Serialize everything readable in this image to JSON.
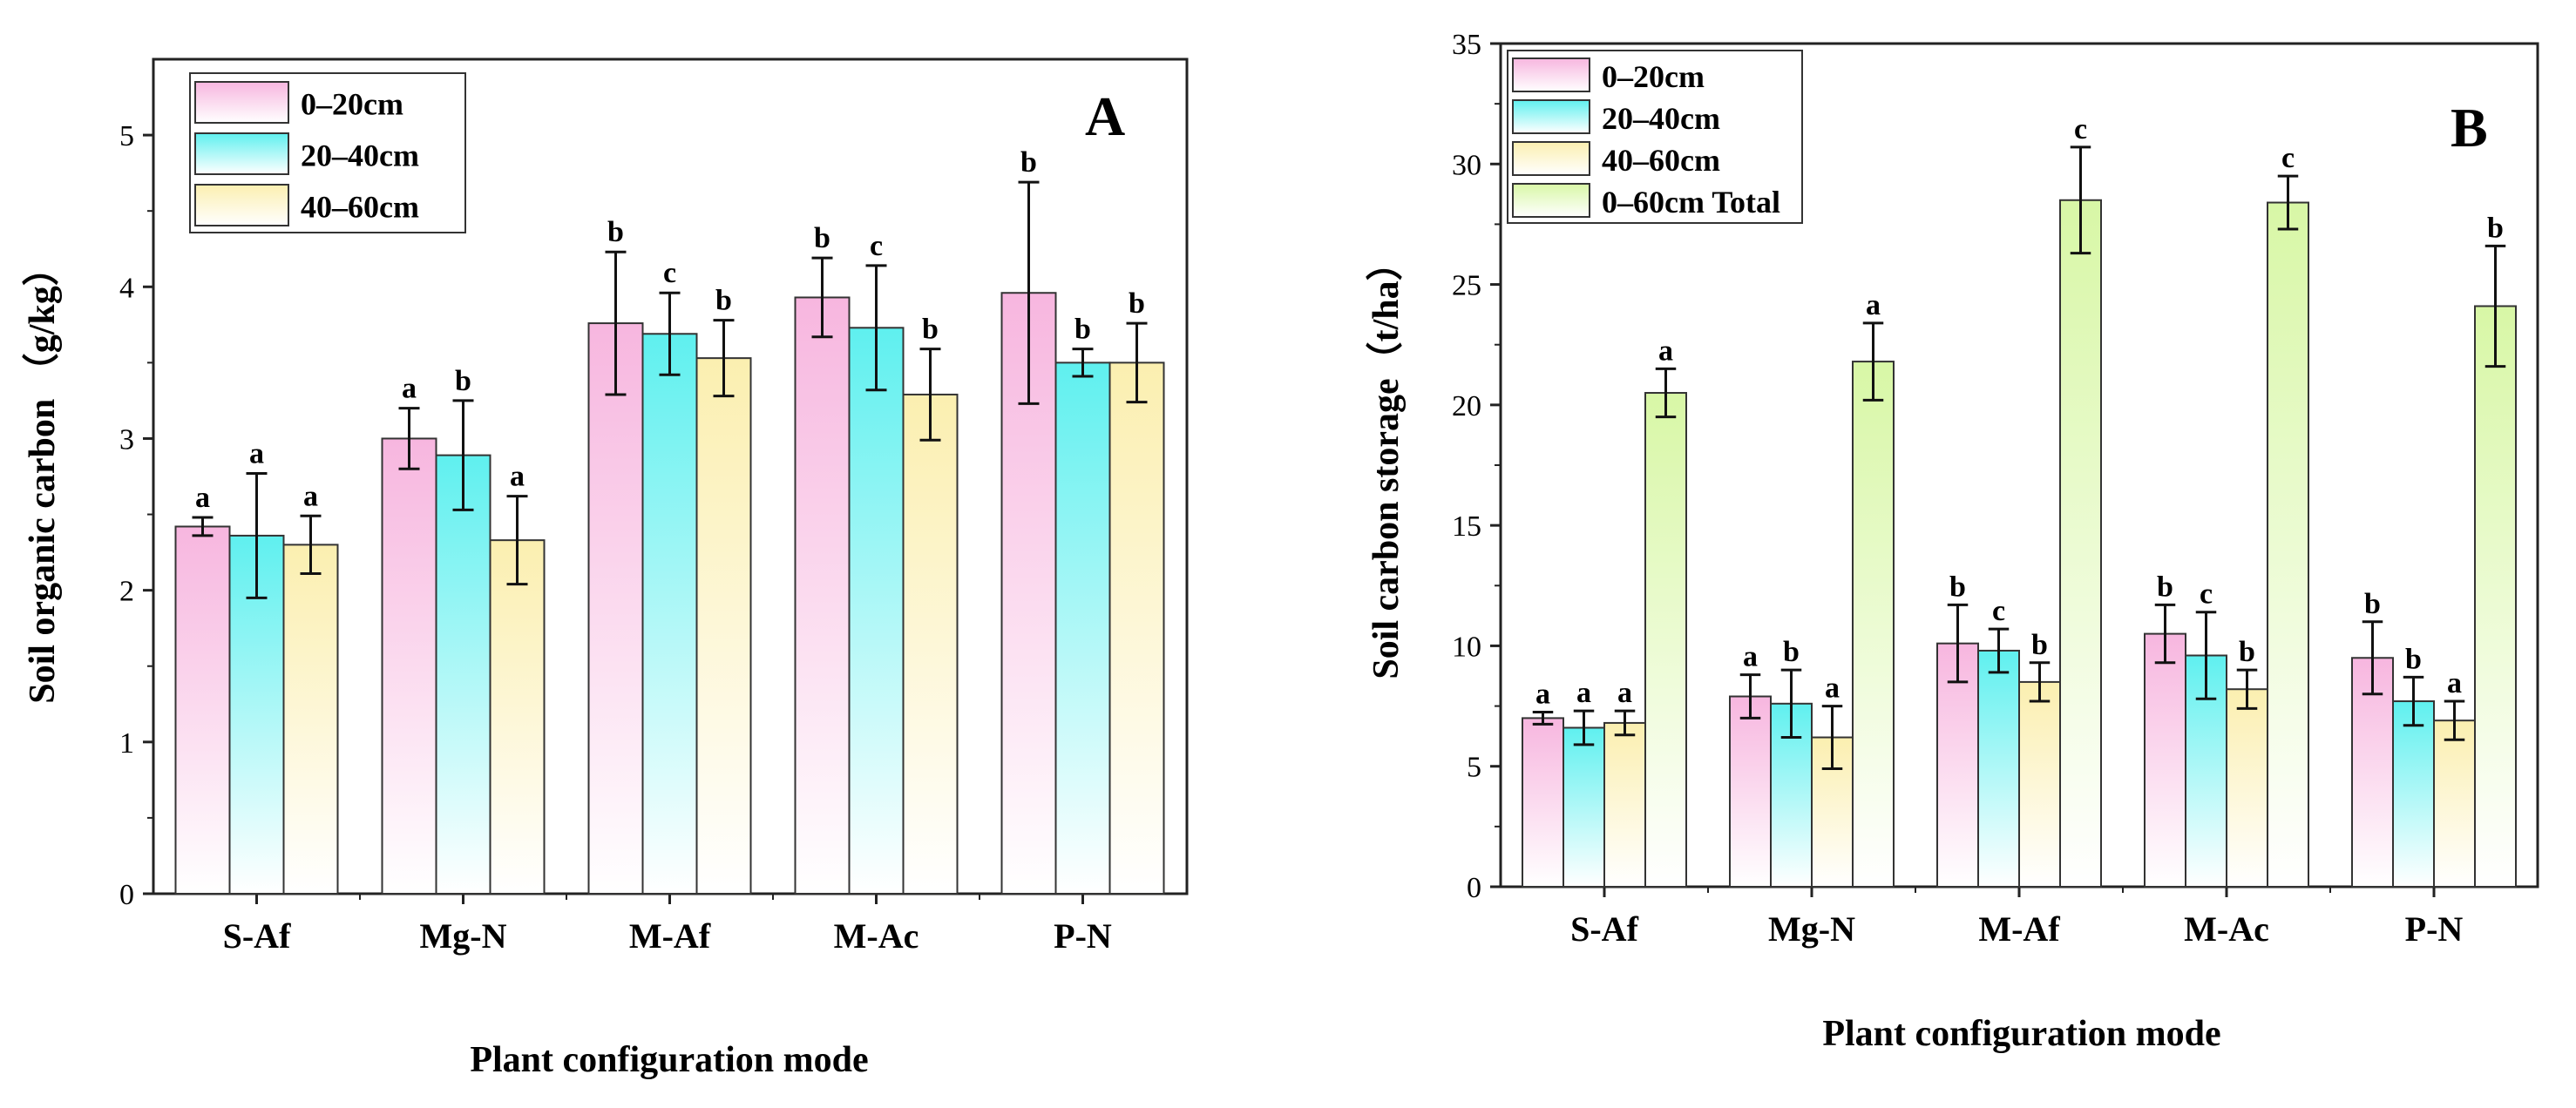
{
  "colors": {
    "s0": "#f7b6df",
    "s1": "#5ff0ef",
    "s2": "#fbefb0",
    "s3": "#d8f7a6"
  },
  "chart_data": [
    {
      "id": "A",
      "type": "bar",
      "panel_label": "A",
      "title": "",
      "xlabel": "Plant configuration mode",
      "ylabel": "Soil organic carbon （g/kg）",
      "ylim": [
        0,
        5.5
      ],
      "yticks": [
        0,
        1,
        2,
        3,
        4,
        5
      ],
      "categories": [
        "S-Af",
        "Mg-N",
        "M-Af",
        "M-Ac",
        "P-N"
      ],
      "legend_position": "top-left",
      "series": [
        {
          "name": "0–20cm",
          "color_key": "s0",
          "values": [
            2.42,
            3.0,
            3.76,
            3.93,
            3.96
          ],
          "errors": [
            0.06,
            0.2,
            0.47,
            0.26,
            0.73
          ],
          "labels": [
            "a",
            "a",
            "b",
            "b",
            "b"
          ]
        },
        {
          "name": "20–40cm",
          "color_key": "s1",
          "values": [
            2.36,
            2.89,
            3.69,
            3.73,
            3.5
          ],
          "errors": [
            0.41,
            0.36,
            0.27,
            0.41,
            0.09
          ],
          "labels": [
            "a",
            "b",
            "c",
            "c",
            "b"
          ]
        },
        {
          "name": "40–60cm",
          "color_key": "s2",
          "values": [
            2.3,
            2.33,
            3.53,
            3.29,
            3.5
          ],
          "errors": [
            0.19,
            0.29,
            0.25,
            0.3,
            0.26
          ],
          "labels": [
            "a",
            "a",
            "b",
            "b",
            "b"
          ]
        }
      ]
    },
    {
      "id": "B",
      "type": "bar",
      "panel_label": "B",
      "title": "",
      "xlabel": "Plant configuration mode",
      "ylabel": "Soil carbon storage（t/ha）",
      "ylim": [
        0,
        35
      ],
      "yticks": [
        0,
        5,
        10,
        15,
        20,
        25,
        30,
        35
      ],
      "categories": [
        "S-Af",
        "Mg-N",
        "M-Af",
        "M-Ac",
        "P-N"
      ],
      "legend_position": "top-left",
      "series": [
        {
          "name": "0–20cm",
          "color_key": "s0",
          "values": [
            7.0,
            7.9,
            10.1,
            10.5,
            9.5
          ],
          "errors": [
            0.25,
            0.9,
            1.6,
            1.2,
            1.5
          ],
          "labels": [
            "a",
            "a",
            "b",
            "b",
            "b"
          ]
        },
        {
          "name": "20–40cm",
          "color_key": "s1",
          "values": [
            6.6,
            7.6,
            9.8,
            9.6,
            7.7
          ],
          "errors": [
            0.7,
            1.4,
            0.9,
            1.8,
            1.0
          ],
          "labels": [
            "a",
            "b",
            "c",
            "c",
            "b"
          ]
        },
        {
          "name": "40–60cm",
          "color_key": "s2",
          "values": [
            6.8,
            6.2,
            8.5,
            8.2,
            6.9
          ],
          "errors": [
            0.5,
            1.3,
            0.8,
            0.8,
            0.8
          ],
          "labels": [
            "a",
            "a",
            "b",
            "b",
            "a"
          ]
        },
        {
          "name": "0–60cm Total",
          "color_key": "s3",
          "values": [
            20.5,
            21.8,
            28.5,
            28.4,
            24.1
          ],
          "errors": [
            1.0,
            1.6,
            2.2,
            1.1,
            2.5
          ],
          "labels": [
            "a",
            "a",
            "c",
            "c",
            "b"
          ]
        }
      ]
    }
  ]
}
